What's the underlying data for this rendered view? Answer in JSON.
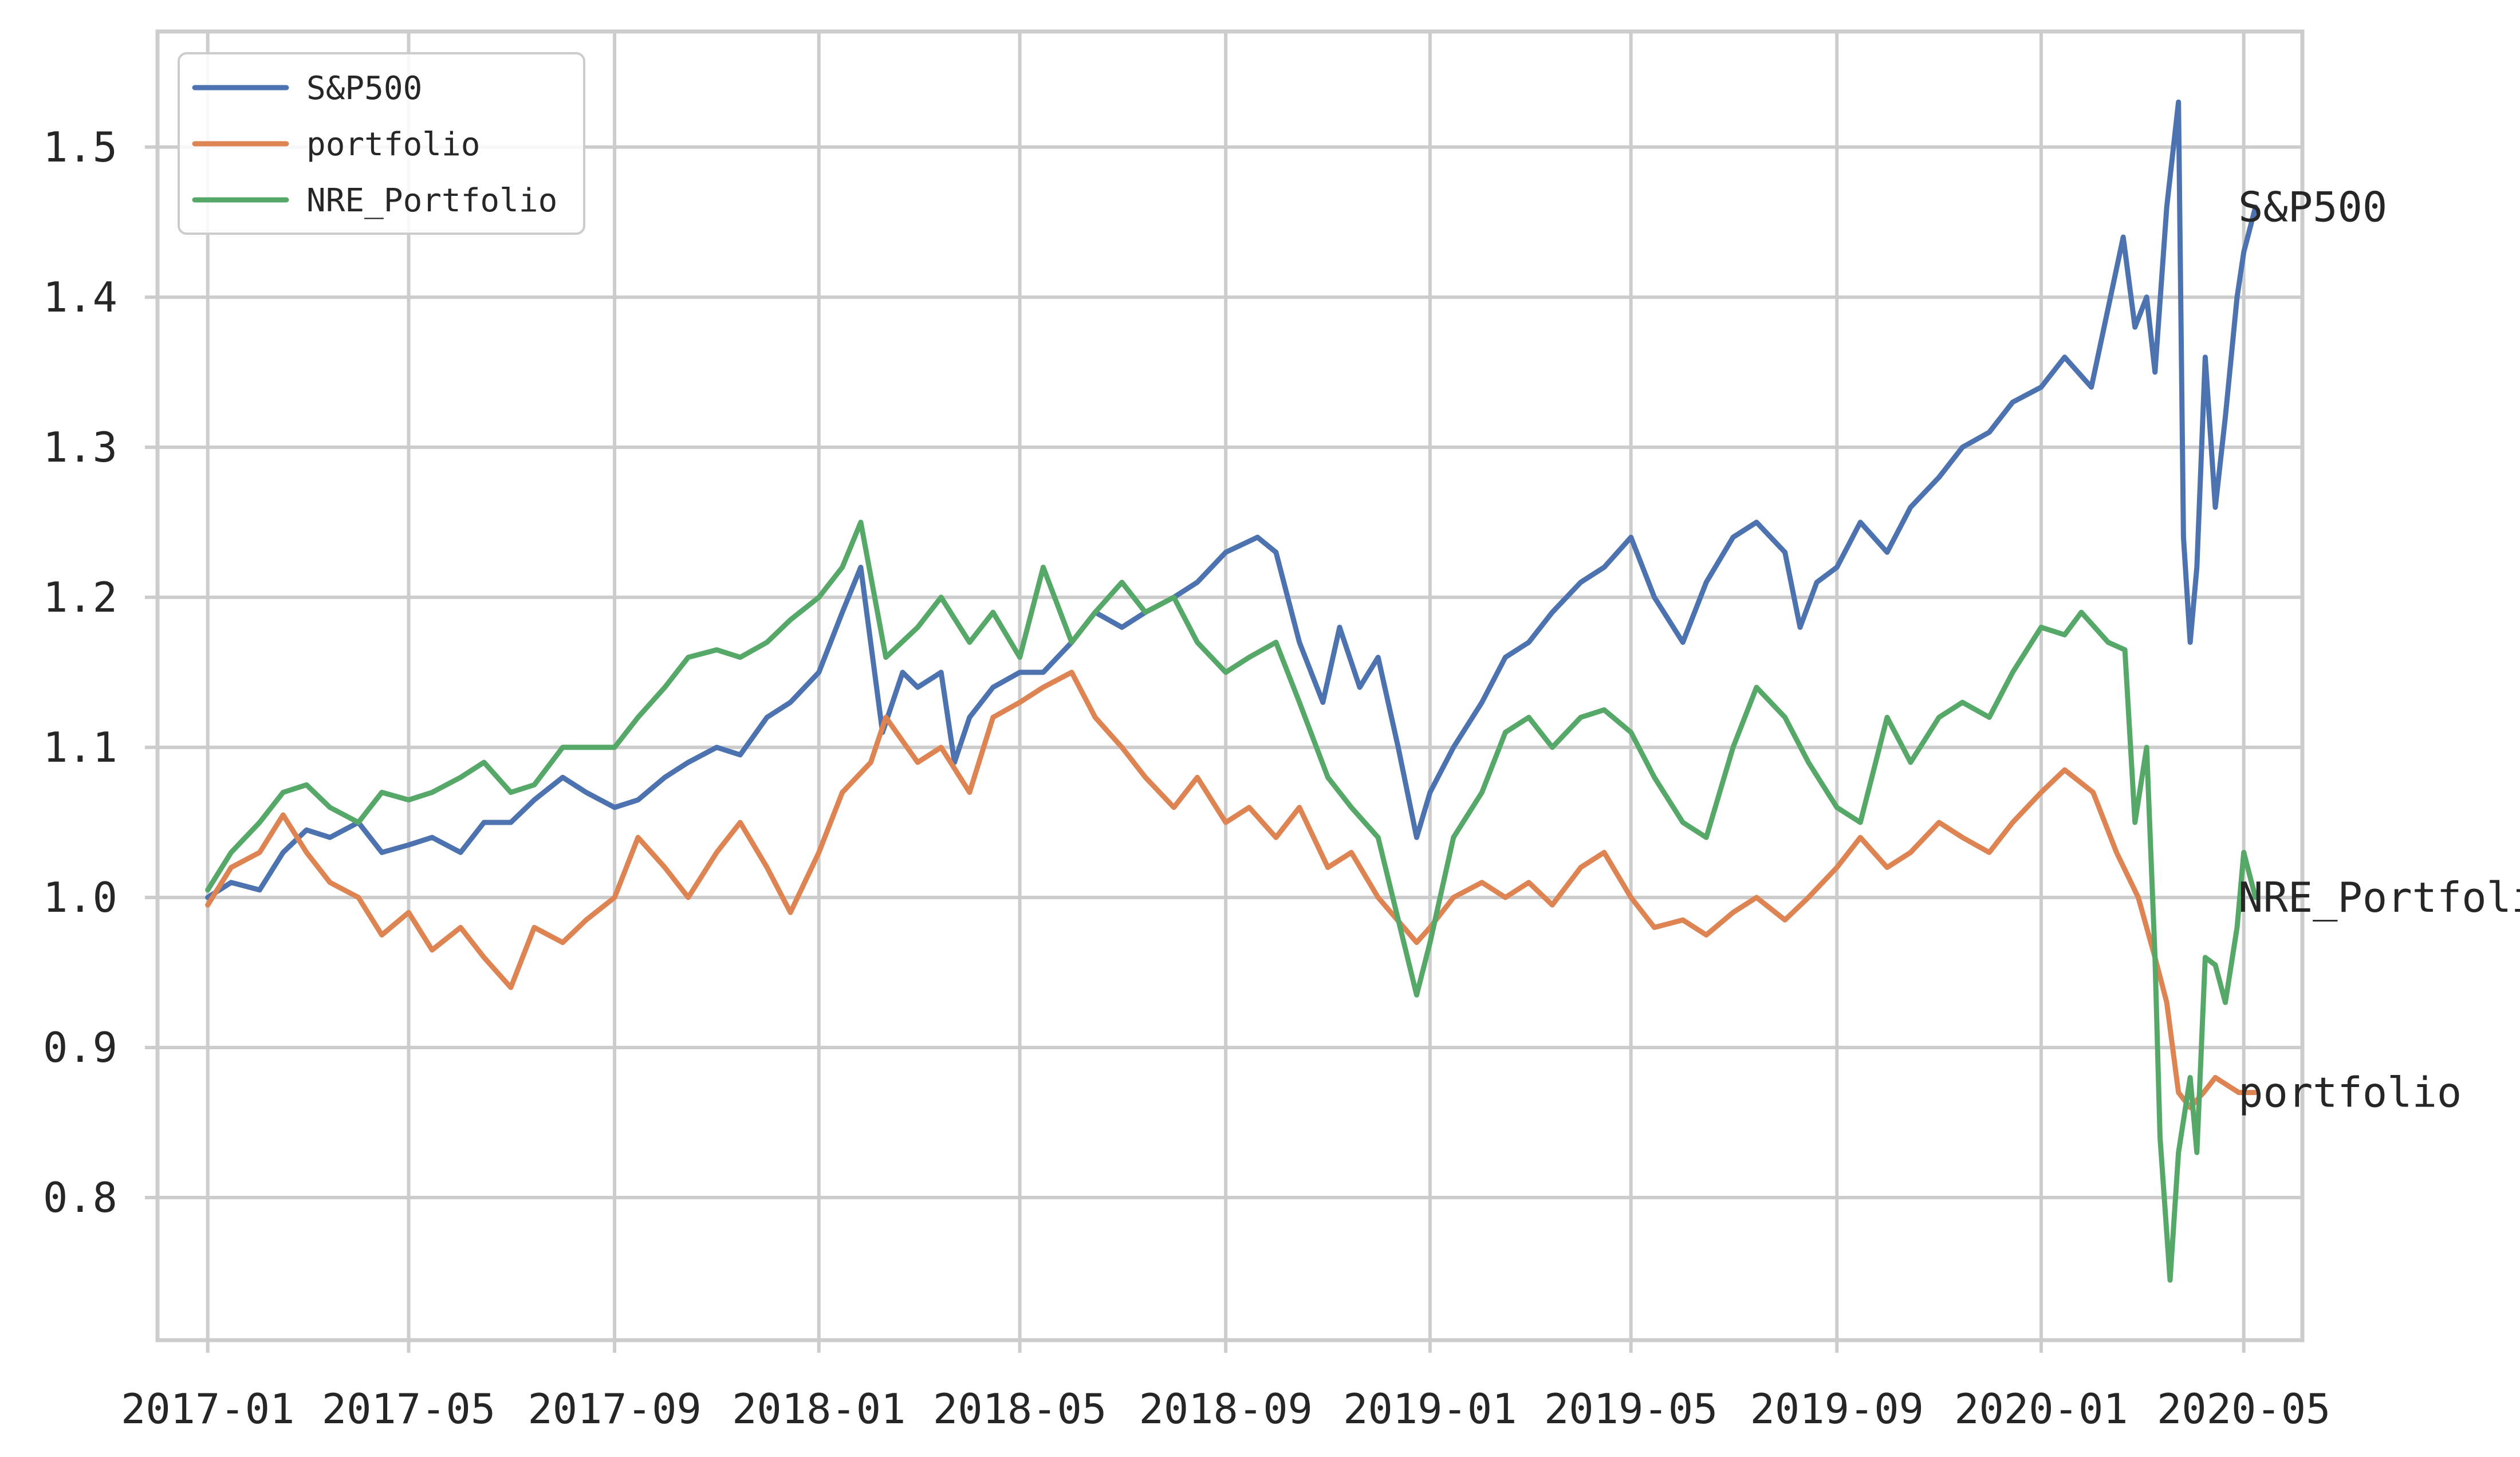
{
  "chart_data": {
    "type": "line",
    "title": "",
    "xlabel": "",
    "ylabel": "",
    "x_range": [
      "2016-12-02",
      "2020-06-05"
    ],
    "ylim": [
      0.705,
      1.577
    ],
    "grid": true,
    "legend_position": "upper-left",
    "x_ticks": [
      "2017-01",
      "2017-05",
      "2017-09",
      "2018-01",
      "2018-05",
      "2018-09",
      "2019-01",
      "2019-05",
      "2019-09",
      "2020-01",
      "2020-05"
    ],
    "y_ticks": [
      "0.8",
      "0.9",
      "1.0",
      "1.1",
      "1.2",
      "1.3",
      "1.4",
      "1.5"
    ],
    "series": [
      {
        "name": "S&P500",
        "color": "#4c72b0",
        "annotation": "S&P500",
        "points": [
          [
            "2017-01-01",
            1.0
          ],
          [
            "2017-01-15",
            1.01
          ],
          [
            "2017-02-01",
            1.005
          ],
          [
            "2017-02-15",
            1.03
          ],
          [
            "2017-03-01",
            1.045
          ],
          [
            "2017-03-15",
            1.04
          ],
          [
            "2017-04-01",
            1.05
          ],
          [
            "2017-04-15",
            1.03
          ],
          [
            "2017-05-01",
            1.035
          ],
          [
            "2017-05-15",
            1.04
          ],
          [
            "2017-06-01",
            1.03
          ],
          [
            "2017-06-15",
            1.05
          ],
          [
            "2017-07-01",
            1.05
          ],
          [
            "2017-07-15",
            1.065
          ],
          [
            "2017-08-01",
            1.08
          ],
          [
            "2017-08-15",
            1.07
          ],
          [
            "2017-09-01",
            1.06
          ],
          [
            "2017-09-15",
            1.065
          ],
          [
            "2017-10-01",
            1.08
          ],
          [
            "2017-10-15",
            1.09
          ],
          [
            "2017-11-01",
            1.1
          ],
          [
            "2017-11-15",
            1.095
          ],
          [
            "2017-12-01",
            1.12
          ],
          [
            "2017-12-15",
            1.13
          ],
          [
            "2018-01-01",
            1.15
          ],
          [
            "2018-01-15",
            1.19
          ],
          [
            "2018-01-26",
            1.22
          ],
          [
            "2018-02-08",
            1.11
          ],
          [
            "2018-02-20",
            1.15
          ],
          [
            "2018-03-01",
            1.14
          ],
          [
            "2018-03-15",
            1.15
          ],
          [
            "2018-03-23",
            1.09
          ],
          [
            "2018-04-01",
            1.12
          ],
          [
            "2018-04-15",
            1.14
          ],
          [
            "2018-05-01",
            1.15
          ],
          [
            "2018-05-15",
            1.15
          ],
          [
            "2018-06-01",
            1.17
          ],
          [
            "2018-06-15",
            1.19
          ],
          [
            "2018-07-01",
            1.18
          ],
          [
            "2018-07-15",
            1.19
          ],
          [
            "2018-08-01",
            1.2
          ],
          [
            "2018-08-15",
            1.21
          ],
          [
            "2018-09-01",
            1.23
          ],
          [
            "2018-09-20",
            1.24
          ],
          [
            "2018-10-01",
            1.23
          ],
          [
            "2018-10-15",
            1.17
          ],
          [
            "2018-10-29",
            1.13
          ],
          [
            "2018-11-08",
            1.18
          ],
          [
            "2018-11-20",
            1.14
          ],
          [
            "2018-12-01",
            1.16
          ],
          [
            "2018-12-13",
            1.1
          ],
          [
            "2018-12-24",
            1.04
          ],
          [
            "2019-01-01",
            1.07
          ],
          [
            "2019-01-15",
            1.1
          ],
          [
            "2019-02-01",
            1.13
          ],
          [
            "2019-02-15",
            1.16
          ],
          [
            "2019-03-01",
            1.17
          ],
          [
            "2019-03-15",
            1.19
          ],
          [
            "2019-04-01",
            1.21
          ],
          [
            "2019-04-15",
            1.22
          ],
          [
            "2019-05-01",
            1.24
          ],
          [
            "2019-05-15",
            1.2
          ],
          [
            "2019-06-01",
            1.17
          ],
          [
            "2019-06-15",
            1.21
          ],
          [
            "2019-07-01",
            1.24
          ],
          [
            "2019-07-15",
            1.25
          ],
          [
            "2019-08-01",
            1.23
          ],
          [
            "2019-08-10",
            1.18
          ],
          [
            "2019-08-20",
            1.21
          ],
          [
            "2019-09-01",
            1.22
          ],
          [
            "2019-09-15",
            1.25
          ],
          [
            "2019-10-01",
            1.23
          ],
          [
            "2019-10-15",
            1.26
          ],
          [
            "2019-11-01",
            1.28
          ],
          [
            "2019-11-15",
            1.3
          ],
          [
            "2019-12-01",
            1.31
          ],
          [
            "2019-12-15",
            1.33
          ],
          [
            "2020-01-01",
            1.34
          ],
          [
            "2020-01-15",
            1.36
          ],
          [
            "2020-01-31",
            1.34
          ],
          [
            "2020-02-19",
            1.44
          ],
          [
            "2020-02-26",
            1.38
          ],
          [
            "2020-03-04",
            1.4
          ],
          [
            "2020-03-09",
            1.35
          ],
          [
            "2020-03-16",
            1.46
          ],
          [
            "2020-03-23",
            1.53
          ],
          [
            "2020-03-26",
            1.24
          ],
          [
            "2020-03-30",
            1.17
          ],
          [
            "2020-04-03",
            1.22
          ],
          [
            "2020-04-08",
            1.36
          ],
          [
            "2020-04-14",
            1.26
          ],
          [
            "2020-04-20",
            1.32
          ],
          [
            "2020-04-27",
            1.4
          ],
          [
            "2020-05-01",
            1.43
          ],
          [
            "2020-05-08",
            1.46
          ]
        ]
      },
      {
        "name": "portfolio",
        "color": "#dd8452",
        "annotation": "portfolio",
        "points": [
          [
            "2017-01-01",
            0.995
          ],
          [
            "2017-01-15",
            1.02
          ],
          [
            "2017-02-01",
            1.03
          ],
          [
            "2017-02-15",
            1.055
          ],
          [
            "2017-03-01",
            1.03
          ],
          [
            "2017-03-15",
            1.01
          ],
          [
            "2017-04-01",
            1.0
          ],
          [
            "2017-04-15",
            0.975
          ],
          [
            "2017-05-01",
            0.99
          ],
          [
            "2017-05-15",
            0.965
          ],
          [
            "2017-06-01",
            0.98
          ],
          [
            "2017-06-15",
            0.96
          ],
          [
            "2017-07-01",
            0.94
          ],
          [
            "2017-07-15",
            0.98
          ],
          [
            "2017-08-01",
            0.97
          ],
          [
            "2017-08-15",
            0.985
          ],
          [
            "2017-09-01",
            1.0
          ],
          [
            "2017-09-15",
            1.04
          ],
          [
            "2017-10-01",
            1.02
          ],
          [
            "2017-10-15",
            1.0
          ],
          [
            "2017-11-01",
            1.03
          ],
          [
            "2017-11-15",
            1.05
          ],
          [
            "2017-12-01",
            1.02
          ],
          [
            "2017-12-15",
            0.99
          ],
          [
            "2018-01-01",
            1.03
          ],
          [
            "2018-01-15",
            1.07
          ],
          [
            "2018-02-01",
            1.09
          ],
          [
            "2018-02-10",
            1.12
          ],
          [
            "2018-03-01",
            1.09
          ],
          [
            "2018-03-15",
            1.1
          ],
          [
            "2018-04-01",
            1.07
          ],
          [
            "2018-04-15",
            1.12
          ],
          [
            "2018-05-01",
            1.13
          ],
          [
            "2018-05-15",
            1.14
          ],
          [
            "2018-06-01",
            1.15
          ],
          [
            "2018-06-15",
            1.12
          ],
          [
            "2018-07-01",
            1.1
          ],
          [
            "2018-07-15",
            1.08
          ],
          [
            "2018-08-01",
            1.06
          ],
          [
            "2018-08-15",
            1.08
          ],
          [
            "2018-09-01",
            1.05
          ],
          [
            "2018-09-15",
            1.06
          ],
          [
            "2018-10-01",
            1.04
          ],
          [
            "2018-10-15",
            1.06
          ],
          [
            "2018-11-01",
            1.02
          ],
          [
            "2018-11-15",
            1.03
          ],
          [
            "2018-12-01",
            1.0
          ],
          [
            "2018-12-24",
            0.97
          ],
          [
            "2019-01-01",
            0.98
          ],
          [
            "2019-01-15",
            1.0
          ],
          [
            "2019-02-01",
            1.01
          ],
          [
            "2019-02-15",
            1.0
          ],
          [
            "2019-03-01",
            1.01
          ],
          [
            "2019-03-15",
            0.995
          ],
          [
            "2019-04-01",
            1.02
          ],
          [
            "2019-04-15",
            1.03
          ],
          [
            "2019-05-01",
            1.0
          ],
          [
            "2019-05-15",
            0.98
          ],
          [
            "2019-06-01",
            0.985
          ],
          [
            "2019-06-15",
            0.975
          ],
          [
            "2019-07-01",
            0.99
          ],
          [
            "2019-07-15",
            1.0
          ],
          [
            "2019-08-01",
            0.985
          ],
          [
            "2019-08-15",
            1.0
          ],
          [
            "2019-09-01",
            1.02
          ],
          [
            "2019-09-15",
            1.04
          ],
          [
            "2019-10-01",
            1.02
          ],
          [
            "2019-10-15",
            1.03
          ],
          [
            "2019-11-01",
            1.05
          ],
          [
            "2019-11-15",
            1.04
          ],
          [
            "2019-12-01",
            1.03
          ],
          [
            "2019-12-15",
            1.05
          ],
          [
            "2020-01-01",
            1.07
          ],
          [
            "2020-01-15",
            1.085
          ],
          [
            "2020-02-01",
            1.07
          ],
          [
            "2020-02-15",
            1.03
          ],
          [
            "2020-02-28",
            1.0
          ],
          [
            "2020-03-09",
            0.96
          ],
          [
            "2020-03-16",
            0.93
          ],
          [
            "2020-03-23",
            0.87
          ],
          [
            "2020-03-30",
            0.86
          ],
          [
            "2020-04-07",
            0.87
          ],
          [
            "2020-04-14",
            0.88
          ],
          [
            "2020-04-21",
            0.875
          ],
          [
            "2020-04-28",
            0.87
          ],
          [
            "2020-05-08",
            0.87
          ]
        ]
      },
      {
        "name": "NRE_Portfolio",
        "color": "#55a868",
        "annotation": "NRE_Portfolio",
        "points": [
          [
            "2017-01-01",
            1.005
          ],
          [
            "2017-01-15",
            1.03
          ],
          [
            "2017-02-01",
            1.05
          ],
          [
            "2017-02-15",
            1.07
          ],
          [
            "2017-03-01",
            1.075
          ],
          [
            "2017-03-15",
            1.06
          ],
          [
            "2017-04-01",
            1.05
          ],
          [
            "2017-04-15",
            1.07
          ],
          [
            "2017-05-01",
            1.065
          ],
          [
            "2017-05-15",
            1.07
          ],
          [
            "2017-06-01",
            1.08
          ],
          [
            "2017-06-15",
            1.09
          ],
          [
            "2017-07-01",
            1.07
          ],
          [
            "2017-07-15",
            1.075
          ],
          [
            "2017-08-01",
            1.1
          ],
          [
            "2017-08-15",
            1.1
          ],
          [
            "2017-09-01",
            1.1
          ],
          [
            "2017-09-15",
            1.12
          ],
          [
            "2017-10-01",
            1.14
          ],
          [
            "2017-10-15",
            1.16
          ],
          [
            "2017-11-01",
            1.165
          ],
          [
            "2017-11-15",
            1.16
          ],
          [
            "2017-12-01",
            1.17
          ],
          [
            "2017-12-15",
            1.185
          ],
          [
            "2018-01-01",
            1.2
          ],
          [
            "2018-01-15",
            1.22
          ],
          [
            "2018-01-26",
            1.25
          ],
          [
            "2018-02-10",
            1.16
          ],
          [
            "2018-03-01",
            1.18
          ],
          [
            "2018-03-15",
            1.2
          ],
          [
            "2018-04-01",
            1.17
          ],
          [
            "2018-04-15",
            1.19
          ],
          [
            "2018-05-01",
            1.16
          ],
          [
            "2018-05-15",
            1.22
          ],
          [
            "2018-06-01",
            1.17
          ],
          [
            "2018-06-15",
            1.19
          ],
          [
            "2018-07-01",
            1.21
          ],
          [
            "2018-07-15",
            1.19
          ],
          [
            "2018-08-01",
            1.2
          ],
          [
            "2018-08-15",
            1.17
          ],
          [
            "2018-09-01",
            1.15
          ],
          [
            "2018-09-15",
            1.16
          ],
          [
            "2018-10-01",
            1.17
          ],
          [
            "2018-10-15",
            1.13
          ],
          [
            "2018-11-01",
            1.08
          ],
          [
            "2018-11-15",
            1.06
          ],
          [
            "2018-12-01",
            1.04
          ],
          [
            "2018-12-24",
            0.935
          ],
          [
            "2019-01-01",
            0.97
          ],
          [
            "2019-01-15",
            1.04
          ],
          [
            "2019-02-01",
            1.07
          ],
          [
            "2019-02-15",
            1.11
          ],
          [
            "2019-03-01",
            1.12
          ],
          [
            "2019-03-15",
            1.1
          ],
          [
            "2019-04-01",
            1.12
          ],
          [
            "2019-04-15",
            1.125
          ],
          [
            "2019-05-01",
            1.11
          ],
          [
            "2019-05-15",
            1.08
          ],
          [
            "2019-06-01",
            1.05
          ],
          [
            "2019-06-15",
            1.04
          ],
          [
            "2019-07-01",
            1.1
          ],
          [
            "2019-07-15",
            1.14
          ],
          [
            "2019-08-01",
            1.12
          ],
          [
            "2019-08-15",
            1.09
          ],
          [
            "2019-09-01",
            1.06
          ],
          [
            "2019-09-15",
            1.05
          ],
          [
            "2019-10-01",
            1.12
          ],
          [
            "2019-10-15",
            1.09
          ],
          [
            "2019-11-01",
            1.12
          ],
          [
            "2019-11-15",
            1.13
          ],
          [
            "2019-12-01",
            1.12
          ],
          [
            "2019-12-15",
            1.15
          ],
          [
            "2020-01-01",
            1.18
          ],
          [
            "2020-01-15",
            1.175
          ],
          [
            "2020-01-25",
            1.19
          ],
          [
            "2020-02-10",
            1.17
          ],
          [
            "2020-02-20",
            1.165
          ],
          [
            "2020-02-26",
            1.05
          ],
          [
            "2020-03-04",
            1.1
          ],
          [
            "2020-03-09",
            0.96
          ],
          [
            "2020-03-12",
            0.84
          ],
          [
            "2020-03-18",
            0.745
          ],
          [
            "2020-03-23",
            0.83
          ],
          [
            "2020-03-30",
            0.88
          ],
          [
            "2020-04-03",
            0.83
          ],
          [
            "2020-04-08",
            0.96
          ],
          [
            "2020-04-14",
            0.955
          ],
          [
            "2020-04-20",
            0.93
          ],
          [
            "2020-04-27",
            0.98
          ],
          [
            "2020-05-01",
            1.03
          ],
          [
            "2020-05-08",
            1.0
          ]
        ]
      }
    ]
  }
}
